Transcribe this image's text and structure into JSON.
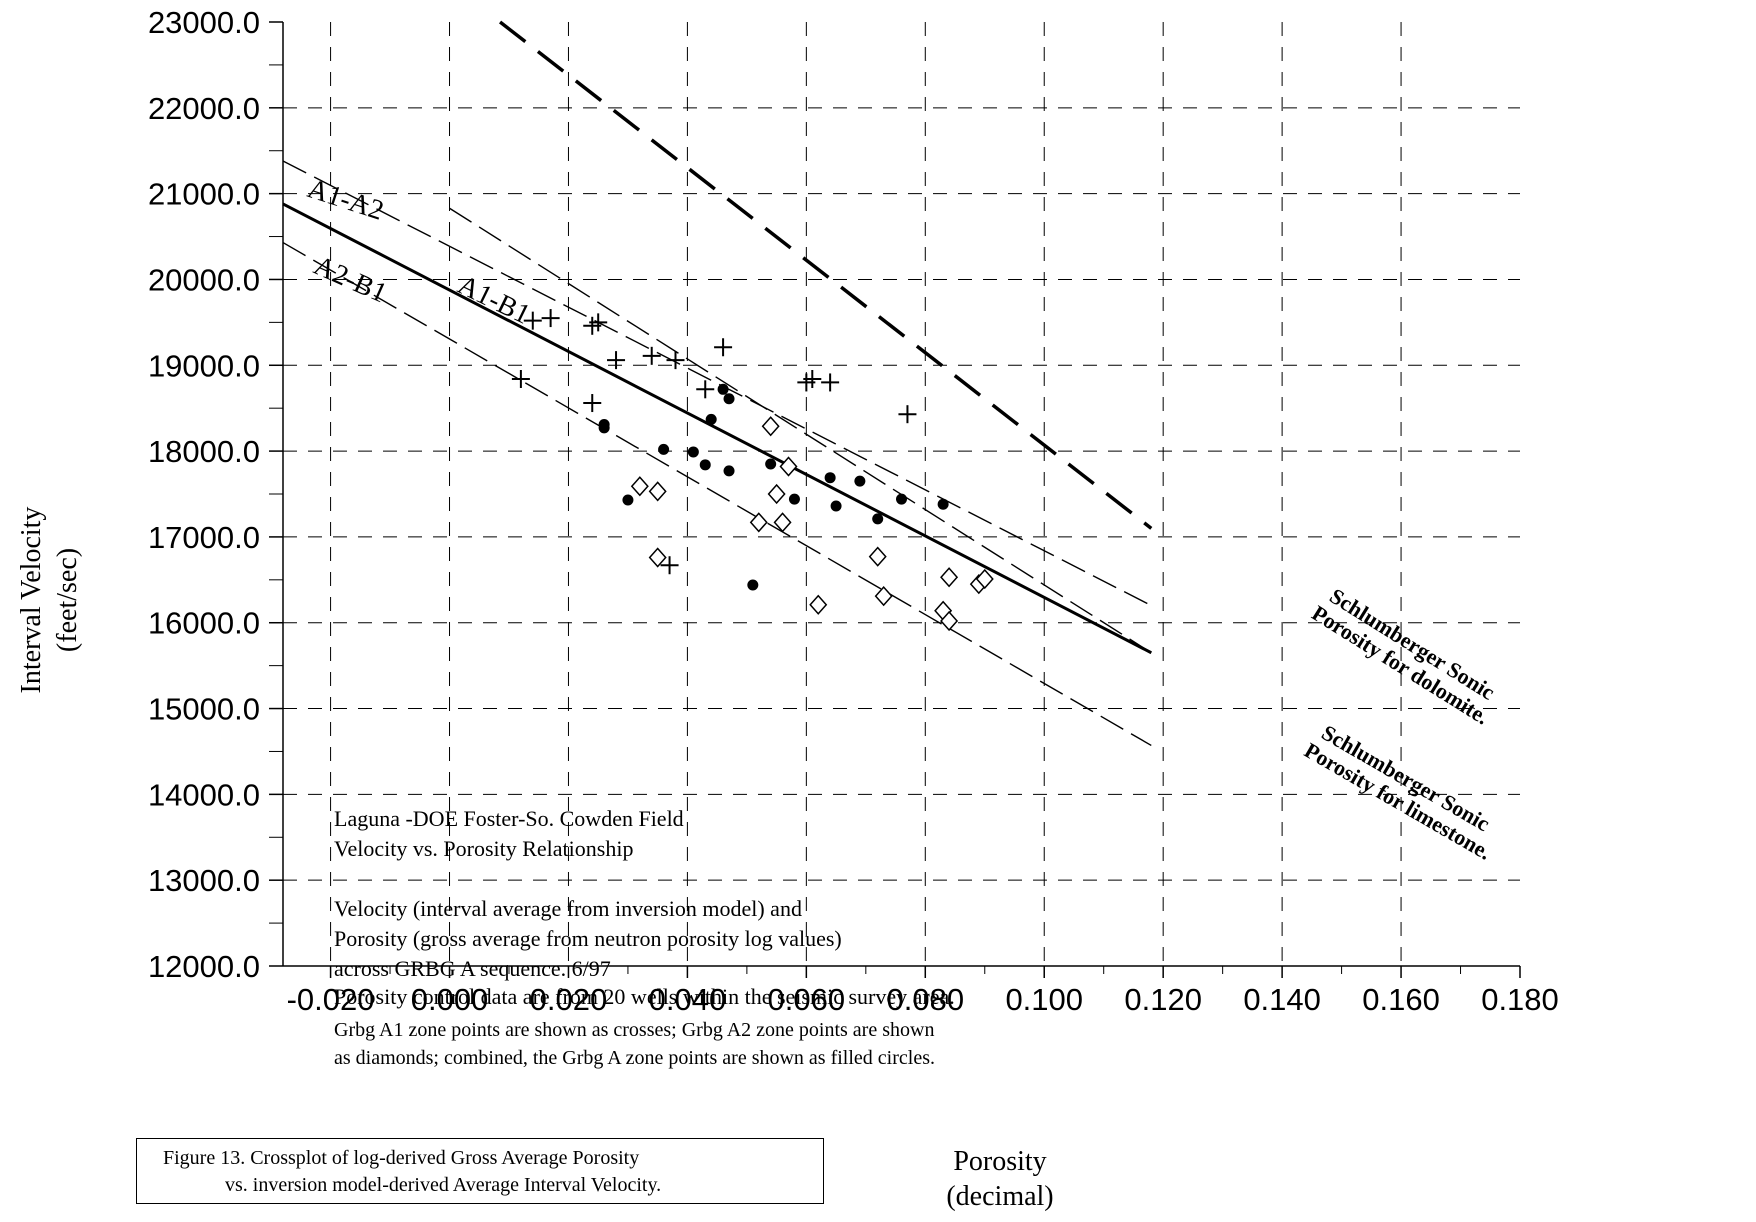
{
  "chart_data": {
    "type": "scatter",
    "title": "Laguna -DOE Foster-So. Cowden Field",
    "subtitle": "Velocity vs. Porosity Relationship",
    "xlabel": [
      "Porosity",
      "(decimal)"
    ],
    "ylabel": [
      "Interval Velocity",
      "(feet/sec)"
    ],
    "xlim": [
      -0.028,
      0.18
    ],
    "ylim": [
      12000,
      23000
    ],
    "grid": true,
    "x_ticks": [
      "-0.020",
      "0.000",
      "0.020",
      "0.040",
      "0.060",
      "0.080",
      "0.100",
      "0.120",
      "0.140",
      "0.160",
      "0.180"
    ],
    "x_tick_values": [
      -0.02,
      0.0,
      0.02,
      0.04,
      0.06,
      0.08,
      0.1,
      0.12,
      0.14,
      0.16,
      0.18
    ],
    "y_ticks": [
      "12000.0",
      "13000.0",
      "14000.0",
      "15000.0",
      "16000.0",
      "17000.0",
      "18000.0",
      "19000.0",
      "20000.0",
      "21000.0",
      "22000.0",
      "23000.0"
    ],
    "y_tick_values": [
      12000,
      13000,
      14000,
      15000,
      16000,
      17000,
      18000,
      19000,
      20000,
      21000,
      22000,
      23000
    ],
    "notes": [
      "Velocity (interval average from inversion model) and",
      "Porosity (gross average from neutron porosity log values)",
      "across GRBG A sequence.  6/97",
      "Porosity control data are from 20 wells within the seismic survey area.",
      "Grbg A1 zone points are shown as crosses; Grbg A2 zone points are shown",
      "as diamonds; combined, the Grbg A zone points are shown as filled circles."
    ],
    "caption": [
      "Figure 13.  Crossplot of log-derived Gross Average Porosity",
      "vs. inversion model-derived Average Interval Velocity."
    ],
    "lines": [
      {
        "name": "A1-A2",
        "style": "dashed",
        "x": [
          -0.028,
          0.118
        ],
        "y": [
          21380,
          16200
        ]
      },
      {
        "name": "A1-B1",
        "style": "solid",
        "x": [
          -0.028,
          0.118
        ],
        "y": [
          20880,
          15650
        ]
      },
      {
        "name": "A2-B1",
        "style": "dashed",
        "x": [
          -0.028,
          0.118
        ],
        "y": [
          20430,
          14570
        ]
      },
      {
        "name": "Schlumberger Sonic Porosity for dolomite.",
        "style": "heavy-dashed",
        "x": [
          0.0085,
          0.118
        ],
        "y": [
          23000,
          17100
        ]
      },
      {
        "name": "Schlumberger Sonic Porosity for limestone.",
        "style": "dashed",
        "x": [
          0.0,
          0.118
        ],
        "y": [
          20830,
          15650
        ]
      }
    ],
    "series": [
      {
        "name": "Grbg A1 zone points",
        "marker": "cross",
        "x": [
          0.012,
          0.014,
          0.017,
          0.024,
          0.025,
          0.024,
          0.028,
          0.034,
          0.038,
          0.037,
          0.043,
          0.046,
          0.06,
          0.061,
          0.064,
          0.077
        ],
        "y": [
          18840,
          19520,
          19550,
          19460,
          19500,
          18560,
          19060,
          19110,
          19060,
          16670,
          18720,
          19210,
          18800,
          18840,
          18800,
          18430
        ]
      },
      {
        "name": "Grbg A2 zone points",
        "marker": "diamond",
        "x": [
          0.032,
          0.035,
          0.035,
          0.052,
          0.054,
          0.055,
          0.056,
          0.057,
          0.062,
          0.072,
          0.073,
          0.083,
          0.084,
          0.084,
          0.089,
          0.09
        ],
        "y": [
          17590,
          17530,
          16760,
          17170,
          18290,
          17500,
          17170,
          17820,
          16210,
          16770,
          16310,
          16140,
          16020,
          16530,
          16450,
          16510
        ]
      },
      {
        "name": "Grbg A zone points",
        "marker": "filled-circle",
        "x": [
          0.026,
          0.026,
          0.03,
          0.036,
          0.041,
          0.043,
          0.044,
          0.046,
          0.047,
          0.047,
          0.051,
          0.054,
          0.058,
          0.064,
          0.065,
          0.069,
          0.072,
          0.076,
          0.083
        ],
        "y": [
          18270,
          18310,
          17430,
          18020,
          17990,
          17840,
          18370,
          18720,
          18610,
          17770,
          16440,
          17850,
          17440,
          17690,
          17360,
          17650,
          17210,
          17440,
          17380
        ]
      }
    ]
  },
  "colors": {
    "ink": "#000000",
    "background": "#ffffff"
  }
}
